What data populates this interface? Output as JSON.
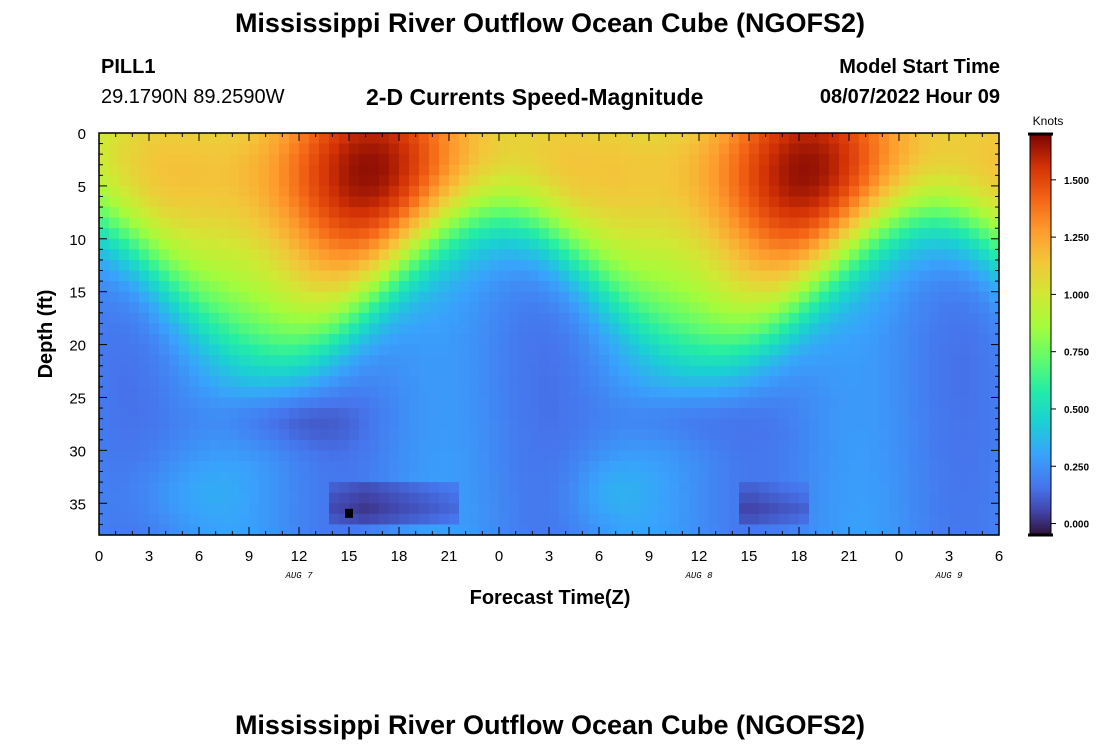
{
  "page": {
    "title": "Mississippi River Outflow Ocean Cube (NGOFS2)",
    "station": "PILL1",
    "coordinates": "29.1790N  89.2590W",
    "subtitle": "2-D Currents Speed-Magnitude",
    "model_start_label": "Model Start Time",
    "model_start_value": "08/07/2022 Hour 09",
    "bottom_title": "Mississippi River Outflow Ocean Cube (NGOFS2)"
  },
  "chart_data": {
    "type": "heatmap",
    "xlabel": "Forecast Time(Z)",
    "ylabel": "Depth (ft)",
    "x_range_hours": [
      0,
      54
    ],
    "y_range_ft": [
      0,
      38
    ],
    "y_inverted": true,
    "x_ticks": [
      "0",
      "3",
      "6",
      "9",
      "12",
      "15",
      "18",
      "21",
      "0",
      "3",
      "6",
      "9",
      "12",
      "15",
      "18",
      "21",
      "0",
      "3",
      "6"
    ],
    "y_ticks": [
      "0",
      "5",
      "10",
      "15",
      "20",
      "25",
      "30",
      "35"
    ],
    "date_labels": [
      {
        "text": "AUG 7",
        "at_hour": 12
      },
      {
        "text": "AUG 8",
        "at_hour": 36
      },
      {
        "text": "AUG 9",
        "at_hour": 51
      }
    ],
    "colorbar": {
      "unit": "Knots",
      "range": [
        -0.05,
        1.7
      ],
      "ticks": [
        "1.500",
        "1.250",
        "1.000",
        "0.750",
        "0.500",
        "0.250",
        "0.000"
      ],
      "tick_values": [
        1.5,
        1.25,
        1.0,
        0.75,
        0.5,
        0.25,
        0.0
      ],
      "colormap": "turbo"
    },
    "surface_maxima": [
      {
        "hour": 16,
        "depth_ft": 4,
        "knots": 1.68
      },
      {
        "hour": 43,
        "depth_ft": 2,
        "knots": 1.65
      }
    ],
    "minima_near_bottom": [
      {
        "hour": 15,
        "depth_ft": 36,
        "knots": -0.05
      },
      {
        "hour": 39,
        "depth_ft": 36,
        "knots": 0.05
      }
    ],
    "grid": false
  }
}
